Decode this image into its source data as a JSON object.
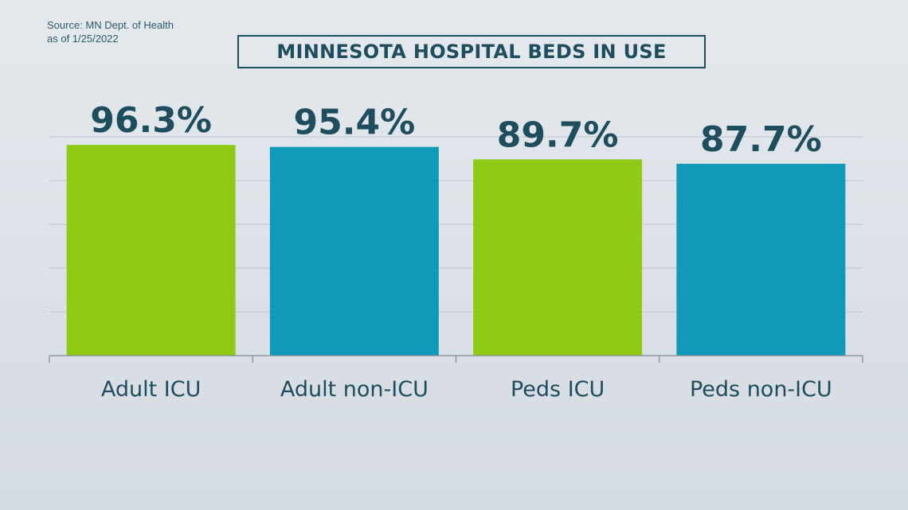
{
  "source": {
    "line1": "Source: MN Dept. of Health",
    "line2": "as of 1/25/2022"
  },
  "chart_data": {
    "type": "bar",
    "title": "MINNESOTA HOSPITAL BEDS IN USE",
    "categories": [
      "Adult ICU",
      "Adult non-ICU",
      "Peds ICU",
      "Peds non-ICU"
    ],
    "values": [
      96.3,
      95.4,
      89.7,
      87.7
    ],
    "value_labels": [
      "96.3%",
      "95.4%",
      "89.7%",
      "87.7%"
    ],
    "bar_colors": [
      "#8fcb16",
      "#1199b9",
      "#8fcb16",
      "#1199b9"
    ],
    "ylim": [
      0,
      100
    ],
    "grid": true,
    "xlabel": "",
    "ylabel": ""
  }
}
